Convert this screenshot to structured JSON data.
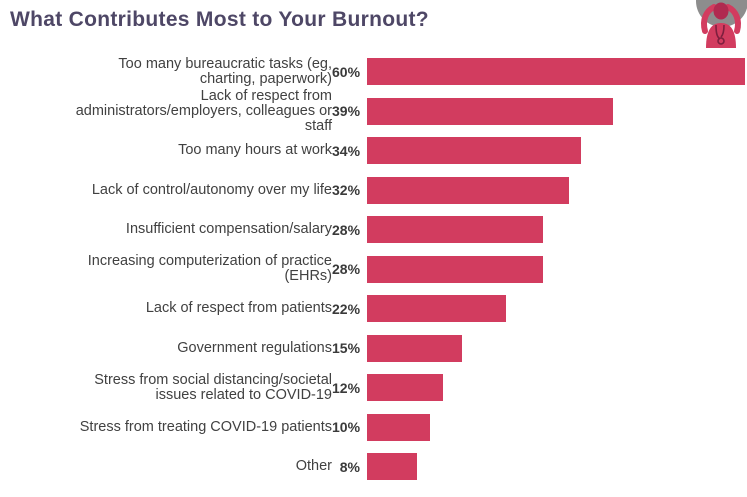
{
  "page": {
    "title": "What Contributes Most to Your Burnout?"
  },
  "icons": {
    "header": "stressed-doctor-icon"
  },
  "colors": {
    "bar": "#d23c5f",
    "title": "#4e4766",
    "label": "#414141",
    "value": "#3a3a3a",
    "icon_circle": "#8d8d8d"
  },
  "chart_data": {
    "type": "bar",
    "orientation": "horizontal",
    "title": "What Contributes Most to Your Burnout?",
    "categories": [
      "Too many bureaucratic tasks (eg, charting, paperwork)",
      "Lack of respect from administrators/employers, colleagues or staff",
      "Too many hours at work",
      "Lack of control/autonomy over my life",
      "Insufficient compensation/salary",
      "Increasing computerization of practice (EHRs)",
      "Lack of respect from patients",
      "Government regulations",
      "Stress from social distancing/societal issues related to COVID-19",
      "Stress from treating COVID-19 patients",
      "Other"
    ],
    "label_lines": [
      [
        "Too many bureaucratic tasks (eg,",
        "charting, paperwork)"
      ],
      [
        "Lack of respect from",
        "administrators/employers, colleagues or",
        "staff"
      ],
      [
        "Too many hours at work"
      ],
      [
        "Lack of control/autonomy over my life"
      ],
      [
        "Insufficient compensation/salary"
      ],
      [
        "Increasing computerization of practice",
        "(EHRs)"
      ],
      [
        "Lack of respect from patients"
      ],
      [
        "Government regulations"
      ],
      [
        "Stress from social distancing/societal",
        "issues related to COVID-19"
      ],
      [
        "Stress from treating COVID-19 patients"
      ],
      [
        "Other"
      ]
    ],
    "values": [
      60,
      39,
      34,
      32,
      28,
      28,
      22,
      15,
      12,
      10,
      8
    ],
    "value_suffix": "%",
    "xlim": [
      0,
      60
    ],
    "grid": false,
    "axes_hidden": true,
    "legend": "none",
    "bar_color": "#d23c5f"
  }
}
